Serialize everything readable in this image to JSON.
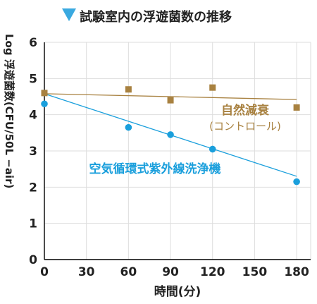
{
  "chart_data": {
    "type": "scatter",
    "title": "試験室内の浮遊菌数の推移",
    "xlabel": "時間(分)",
    "ylabel": "Log 浮遊菌数(CFU/50L −air)",
    "xlim": [
      0,
      190
    ],
    "ylim": [
      0,
      6
    ],
    "x_ticks": [
      0,
      30,
      60,
      90,
      120,
      150,
      180
    ],
    "y_ticks": [
      0,
      1,
      2,
      3,
      4,
      5,
      6
    ],
    "x_tick_labels": [
      "0",
      "30",
      "60",
      "90",
      "120",
      "150",
      "180"
    ],
    "y_tick_labels": [
      "0",
      "1",
      "2",
      "3",
      "4",
      "5",
      "6"
    ],
    "grid": true,
    "series": [
      {
        "name": "自然減衰",
        "sublabel": "(コントロール)",
        "color": "#a88140",
        "marker": "square",
        "x": [
          0,
          60,
          90,
          120,
          180
        ],
        "y": [
          4.6,
          4.7,
          4.4,
          4.75,
          4.2
        ],
        "trend": [
          [
            0,
            4.58
          ],
          [
            180,
            4.42
          ]
        ]
      },
      {
        "name": "空気循環式紫外線洗浄機",
        "color": "#1a9fdc",
        "marker": "circle",
        "x": [
          0,
          60,
          90,
          120,
          180
        ],
        "y": [
          4.3,
          3.65,
          3.45,
          3.05,
          2.15
        ],
        "trend": [
          [
            0,
            4.58
          ],
          [
            180,
            2.3
          ]
        ]
      }
    ],
    "colors": {
      "title_marker": "#3aa9e0",
      "grid": "#dddddd",
      "axis": "#000000"
    }
  }
}
